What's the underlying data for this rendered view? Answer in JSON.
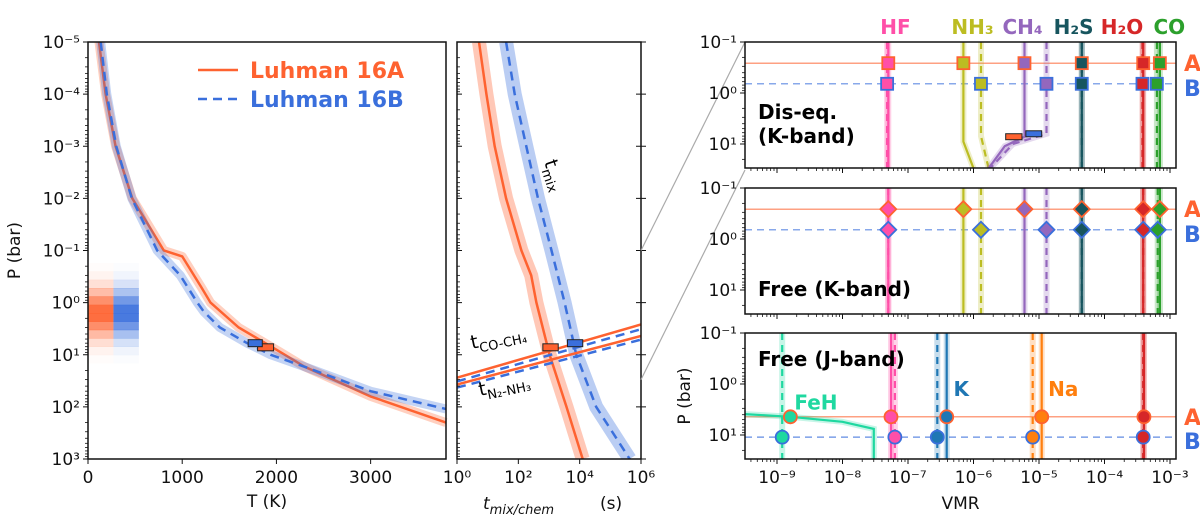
{
  "colors": {
    "A": "#fe6230",
    "B": "#3a6fdc",
    "zoom_line": "#aaaaaa"
  },
  "chart_data": [
    {
      "panel": "pressure-temperature",
      "type": "line",
      "xlabel": "T (K)",
      "ylabel": "P (bar)",
      "xlim": [
        0,
        3800
      ],
      "ylim": [
        1e-05,
        1000
      ],
      "yscale": "log",
      "y_inverted": true,
      "xticks": [
        0,
        1000,
        2000,
        3000
      ],
      "xtick_labels": [
        "0",
        "1000",
        "2000",
        "3000"
      ],
      "yticks": [
        1e-05,
        0.0001,
        0.001,
        0.01,
        0.1,
        1,
        10,
        100,
        1000
      ],
      "ytick_labels": [
        "10⁻⁵",
        "10⁻⁴",
        "10⁻³",
        "10⁻²",
        "10⁻¹",
        "10⁰",
        "10¹",
        "10²",
        "10³"
      ],
      "legend": {
        "placement": "top-right"
      },
      "series": [
        {
          "name": "Luhman 16A",
          "color": "#fe6230",
          "style": "solid",
          "T": [
            117,
            187,
            293,
            470,
            805,
            1000,
            1200,
            1300,
            1600,
            2000,
            2300,
            3000,
            3800
          ],
          "P": [
            1e-05,
            0.0001,
            0.001,
            0.01,
            0.1,
            0.13,
            0.5,
            1.0,
            3,
            8,
            17,
            63,
            200
          ]
        },
        {
          "name": "Luhman 16B",
          "color": "#3a6fdc",
          "style": "dashed",
          "T": [
            135,
            200,
            300,
            465,
            735,
            980,
            1160,
            1230,
            1400,
            1690,
            1940,
            2300,
            3000,
            3800
          ],
          "P": [
            1e-05,
            0.0001,
            0.001,
            0.01,
            0.1,
            0.3,
            1,
            1.5,
            3,
            6,
            10,
            17,
            50,
            110
          ]
        }
      ],
      "quench_boxes": [
        {
          "object": "A",
          "T": [
            1800,
            1970
          ],
          "P": 7.2
        },
        {
          "object": "B",
          "T": [
            1700,
            1850
          ],
          "P": 6.0
        }
      ],
      "cloud_histograms": [
        {
          "object": "A",
          "T": [
            0,
            270
          ],
          "peak_P": 1.6
        },
        {
          "object": "B",
          "T": [
            270,
            540
          ],
          "peak_P": 1.6
        }
      ]
    },
    {
      "panel": "timescales",
      "type": "line",
      "xlabel_main": "t",
      "xlabel_sub": "mix/chem",
      "xlabel_unit": " (s)",
      "xlim": [
        1,
        1000000
      ],
      "xscale": "log",
      "ylim": [
        1e-05,
        1000
      ],
      "yscale": "log",
      "xticks": [
        1,
        100,
        10000,
        1000000
      ],
      "xtick_labels": [
        "10⁰",
        "10²",
        "10⁴",
        "10⁶"
      ],
      "annotations": [
        {
          "main": "t",
          "sub": "mix"
        },
        {
          "main": "t",
          "sub": "CO-CH₄"
        },
        {
          "main": "t",
          "sub": "N₂-NH₃"
        }
      ],
      "series": [
        {
          "label": "t_mix A",
          "object": "A",
          "style": "solid",
          "t": [
            5.2,
            9.1,
            17,
            40,
            126,
            263,
            389,
            1047,
            3715,
            12590
          ],
          "P": [
            1e-05,
            0.0001,
            0.001,
            0.01,
            0.1,
            0.3,
            1,
            10,
            100,
            1000
          ]
        },
        {
          "label": "t_mix B",
          "object": "B",
          "style": "dashed",
          "t": [
            40,
            76,
            182,
            437,
            1202,
            3236,
            7762,
            34670,
            426600
          ],
          "P": [
            1e-05,
            0.0001,
            0.001,
            0.01,
            0.1,
            1,
            10,
            100,
            1000
          ]
        },
        {
          "label": "t_CO-CH4 A",
          "object": "A",
          "style": "solid",
          "t": [
            1,
            1000000
          ],
          "P": [
            27.5,
            2.63
          ]
        },
        {
          "label": "t_N2-NH3 A",
          "object": "A",
          "style": "solid",
          "t": [
            1,
            1000000
          ],
          "P": [
            37.2,
            4.37
          ]
        },
        {
          "label": "t_CO-CH4 B",
          "object": "B",
          "style": "dashed",
          "t": [
            1,
            1000000
          ],
          "P": [
            32.4,
            3.24
          ]
        },
        {
          "label": "t_N2-NH3 B",
          "object": "B",
          "style": "dashed",
          "t": [
            1,
            1000000
          ],
          "P": [
            42.7,
            5.13
          ]
        }
      ],
      "quench_boxes": [
        {
          "object": "A",
          "t": [
            630,
            2000
          ],
          "P": 7.2
        },
        {
          "object": "B",
          "t": [
            4000,
            12600
          ],
          "P": 6.0
        }
      ]
    },
    {
      "panel": "vmr",
      "type": "line",
      "xlabel": "VMR",
      "ylabel": "P (bar)",
      "xlim": [
        3.2e-10,
        0.00126
      ],
      "xscale": "log",
      "ylim": [
        0.1,
        30
      ],
      "yscale": "log",
      "xticks": [
        1e-09,
        1e-08,
        1e-07,
        1e-06,
        1e-05,
        0.0001,
        0.001
      ],
      "xtick_labels": [
        "10⁻⁹",
        "10⁻⁸",
        "10⁻⁷",
        "10⁻⁶",
        "10⁻⁵",
        "10⁻⁴",
        "10⁻³"
      ],
      "yticks": [
        0.1,
        1,
        10
      ],
      "ytick_labels": [
        "10⁻¹",
        "10⁰",
        "10¹"
      ],
      "object_labels": {
        "A": "A",
        "B": "B"
      },
      "species_labels": [
        {
          "text": "HF",
          "color": "#ff4fa8",
          "vmr": 5e-08
        },
        {
          "text": "NH₃",
          "color": "#bcbd22",
          "vmr": 7e-07
        },
        {
          "text": "CH₄",
          "color": "#9467bd",
          "vmr": 6e-06
        },
        {
          "text": "H₂S",
          "color": "#17555e",
          "vmr": 3.5e-05
        },
        {
          "text": "H₂O",
          "color": "#d62728",
          "vmr": 0.00019
        },
        {
          "text": "CO",
          "color": "#2ca02c",
          "vmr": 0.0006
        }
      ],
      "subpanels": [
        {
          "title_lines": [
            "Dis-eq.",
            "(K-band)"
          ],
          "marker": "square",
          "P_A": 0.26,
          "P_B": 0.66,
          "species": [
            {
              "name": "HF",
              "color": "#ff4fa8",
              "A": 5e-08,
              "B": 4.8e-08
            },
            {
              "name": "NH3",
              "color": "#bcbd22",
              "A": 7e-07,
              "B": 1.3e-06,
              "profile_A": [
                [
                  7e-07,
                  0.1
                ],
                [
                  7e-07,
                  9
                ],
                [
                  1e-06,
                  30
                ]
              ],
              "profile_B": [
                [
                  1.3e-06,
                  0.1
                ],
                [
                  1.3e-06,
                  7
                ],
                [
                  1.7e-06,
                  30
                ]
              ]
            },
            {
              "name": "CH4",
              "color": "#9467bd",
              "A": 6e-06,
              "B": 1.3e-05,
              "profile_A": [
                [
                  6e-06,
                  0.1
                ],
                [
                  6e-06,
                  7.2
                ],
                [
                  3e-06,
                  11
                ],
                [
                  1.7e-06,
                  30
                ]
              ],
              "profile_B": [
                [
                  1.3e-05,
                  0.1
                ],
                [
                  1.3e-05,
                  6.3
                ],
                [
                  4e-06,
                  10
                ],
                [
                  1.8e-06,
                  30
                ]
              ]
            },
            {
              "name": "H2S",
              "color": "#17555e",
              "A": 4.5e-05,
              "B": 4.5e-05
            },
            {
              "name": "H2O",
              "color": "#d62728",
              "A": 0.00039,
              "B": 0.00038
            },
            {
              "name": "CO",
              "color": "#2ca02c",
              "A": 0.0007,
              "B": 0.00063
            }
          ],
          "quench_boxes": [
            {
              "object": "A",
              "vmr": [
                3.1e-06,
                5.5e-06
              ],
              "P": 7.2
            },
            {
              "object": "B",
              "vmr": [
                6.3e-06,
                1.1e-05
              ],
              "P": 6.3
            }
          ]
        },
        {
          "title_lines": [
            "Free (K-band)"
          ],
          "marker": "diamond",
          "P_A": 0.26,
          "P_B": 0.66,
          "species": [
            {
              "name": "HF",
              "color": "#ff4fa8",
              "A": 5e-08,
              "B": 5e-08
            },
            {
              "name": "NH3",
              "color": "#bcbd22",
              "A": 7e-07,
              "B": 1.3e-06
            },
            {
              "name": "CH4",
              "color": "#9467bd",
              "A": 6e-06,
              "B": 1.3e-05
            },
            {
              "name": "H2S",
              "color": "#17555e",
              "A": 4.5e-05,
              "B": 4.5e-05
            },
            {
              "name": "H2O",
              "color": "#d62728",
              "A": 0.00039,
              "B": 0.00039
            },
            {
              "name": "CO",
              "color": "#2ca02c",
              "A": 0.0007,
              "B": 0.00065
            }
          ]
        },
        {
          "title_lines": [
            "Free (J-band)"
          ],
          "marker": "circle",
          "P_A": 4.4,
          "P_B": 11,
          "species": [
            {
              "name": "FeH",
              "color": "#1fd8a0",
              "A": 1.6e-09,
              "B": 1.2e-09,
              "profile_A": [
                [
                  3.2e-10,
                  3.9
                ],
                [
                  1.6e-09,
                  4.4
                ],
                [
                  1e-08,
                  5.5
                ],
                [
                  3e-08,
                  7.6
                ],
                [
                  3e-08,
                  30
                ]
              ]
            },
            {
              "name": "HF",
              "color": "#ff4fa8",
              "A": 5.5e-08,
              "B": 6.3e-08
            },
            {
              "name": "K",
              "color": "#1f77b4",
              "A": 3.9e-07,
              "B": 2.8e-07
            },
            {
              "name": "Na",
              "color": "#ff7f0e",
              "A": 1.1e-05,
              "B": 8e-06
            },
            {
              "name": "H2O",
              "color": "#d62728",
              "A": 0.0004,
              "B": 0.00039
            }
          ],
          "species_annotations": [
            {
              "text": "FeH",
              "color": "#1fd8a0",
              "vmr": 1.6e-09,
              "P": 2.2
            },
            {
              "text": "K",
              "color": "#1f77b4",
              "vmr": 4.3e-07,
              "P": 1.2
            },
            {
              "text": "Na",
              "color": "#ff7f0e",
              "vmr": 1.2e-05,
              "P": 1.2
            }
          ]
        }
      ]
    }
  ]
}
